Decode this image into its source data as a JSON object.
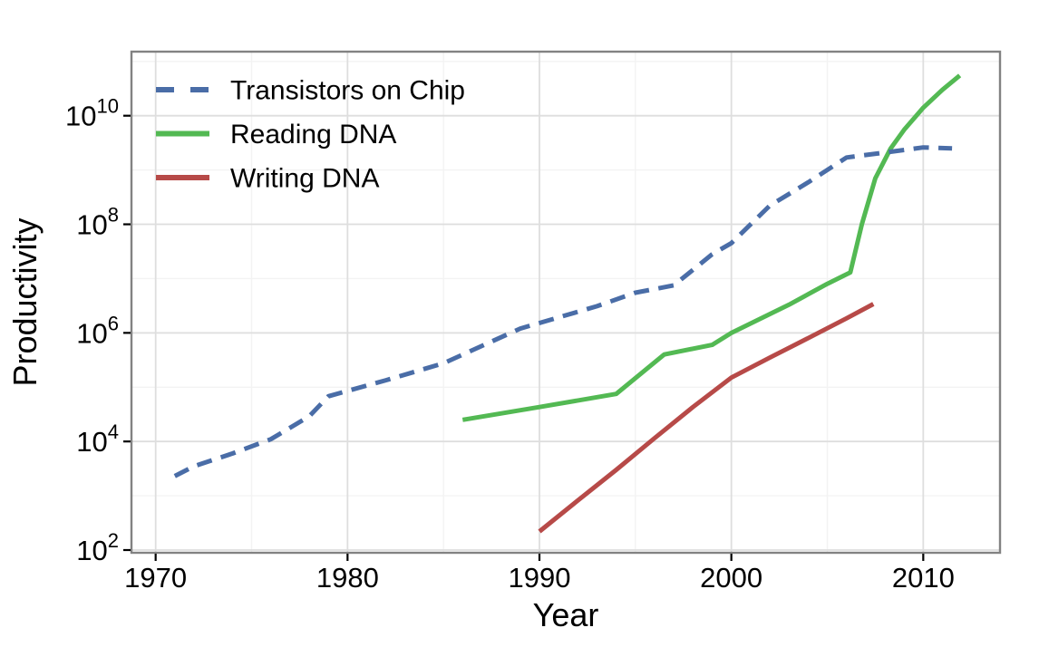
{
  "chart_data": {
    "type": "line",
    "title": "",
    "xlabel": "Year",
    "ylabel": "Productivity",
    "x_axis": {
      "range": [
        1968.74,
        2014.0
      ],
      "major_ticks": [
        1970,
        1980,
        1990,
        2000,
        2010
      ],
      "tick_labels": [
        "1970",
        "1980",
        "1990",
        "2000",
        "2010"
      ],
      "minor_ticks": [
        1975,
        1985,
        1995,
        2005
      ]
    },
    "y_axis": {
      "scale": "log10",
      "range_log10": [
        1.95,
        11.18
      ],
      "major_tick_exponents": [
        2,
        4,
        6,
        8,
        10
      ],
      "tick_labels": [
        {
          "base": "10",
          "exp": "2"
        },
        {
          "base": "10",
          "exp": "4"
        },
        {
          "base": "10",
          "exp": "6"
        },
        {
          "base": "10",
          "exp": "8"
        },
        {
          "base": "10",
          "exp": "10"
        }
      ],
      "minor_tick_exponents": [
        3,
        5,
        7,
        9,
        11
      ]
    },
    "grid": {
      "visible": true,
      "major_color": "#DEDEDE",
      "minor_color": "#F3F3F3"
    },
    "panel": {
      "background": "#FFFFFF",
      "border_color": "#828282"
    },
    "legend": {
      "position": "inside-top-left"
    },
    "series": [
      {
        "name": "Transistors on Chip",
        "color": "#4A6DA7",
        "style": "dashed",
        "points": [
          [
            1971,
            2300
          ],
          [
            1972,
            3500
          ],
          [
            1974,
            6000
          ],
          [
            1976,
            11000
          ],
          [
            1978,
            29000
          ],
          [
            1979,
            68000
          ],
          [
            1982,
            134000
          ],
          [
            1985,
            275000
          ],
          [
            1989,
            1200000
          ],
          [
            1993,
            3100000
          ],
          [
            1995,
            5500000
          ],
          [
            1997,
            7500000
          ],
          [
            1999,
            28000000
          ],
          [
            2000,
            45000000
          ],
          [
            2002,
            220000000
          ],
          [
            2004,
            592000000
          ],
          [
            2006,
            1700000000
          ],
          [
            2008,
            2100000000
          ],
          [
            2010,
            2600000000
          ],
          [
            2011.5,
            2500000000
          ]
        ]
      },
      {
        "name": "Reading DNA",
        "color": "#53B953",
        "style": "solid",
        "points": [
          [
            1986,
            25000
          ],
          [
            1990,
            43000
          ],
          [
            1994,
            75000
          ],
          [
            1996.5,
            400000
          ],
          [
            1999,
            600000
          ],
          [
            2000,
            1000000
          ],
          [
            2003,
            3300000
          ],
          [
            2005,
            8000000
          ],
          [
            2006.2,
            13000000
          ],
          [
            2006.8,
            100000000
          ],
          [
            2007.5,
            700000000
          ],
          [
            2008.3,
            2500000000
          ],
          [
            2009,
            5500000000
          ],
          [
            2010,
            14000000000
          ],
          [
            2011,
            30000000000
          ],
          [
            2011.9,
            55000000000
          ]
        ]
      },
      {
        "name": "Writing DNA",
        "color": "#B74A48",
        "style": "solid",
        "points": [
          [
            1990,
            220
          ],
          [
            1992,
            820
          ],
          [
            1994,
            3000
          ],
          [
            1996,
            11500
          ],
          [
            1998,
            43000
          ],
          [
            2000,
            150000
          ],
          [
            2002,
            350000
          ],
          [
            2004,
            800000
          ],
          [
            2006,
            1850000
          ],
          [
            2007.4,
            3400000
          ]
        ]
      }
    ]
  }
}
